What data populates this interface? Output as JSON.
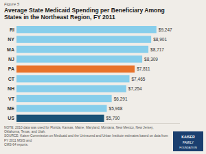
{
  "chart_data": {
    "type": "bar",
    "orientation": "horizontal",
    "title": "Average State Medicaid Spending per Beneficiary Among\nStates in the Northeast Region, FY 2011",
    "annotations": [
      "Figure 5",
      "NOTE: 2010 data was used for Florida, Kansas, Maine, Maryland, Montana, New Mexico, New Jersey, Oklahoma, Texas, and Utah.\nSOURCE: Kaiser Commission on Medicaid and the Uninsured and Urban Institute estimates based on data from FY 2011 MSIS and\nCMS-64 reports.",
      "KAISER",
      "FAMILY",
      "FOUNDATION"
    ],
    "categories": [
      "US",
      "ME",
      "VT",
      "NH",
      "CT",
      "PA",
      "NJ",
      "MA",
      "NY",
      "RI"
    ],
    "values": [
      5790,
      5968,
      6291,
      7254,
      7465,
      7811,
      8309,
      8717,
      8901,
      9247
    ],
    "value_labels": [
      "$5,790",
      "$5,968",
      "$6,291",
      "$7,254",
      "$7,465",
      "$7,811",
      "$8,309",
      "$8,717",
      "$8,901",
      "$9,247"
    ],
    "colors": [
      "#1a5276",
      "#87ceeb",
      "#87ceeb",
      "#87ceeb",
      "#87ceeb",
      "#e8722a",
      "#87ceeb",
      "#87ceeb",
      "#87ceeb",
      "#87ceeb"
    ],
    "xlim": [
      0,
      10800
    ],
    "data_labels": true,
    "tick_labels": "y"
  }
}
